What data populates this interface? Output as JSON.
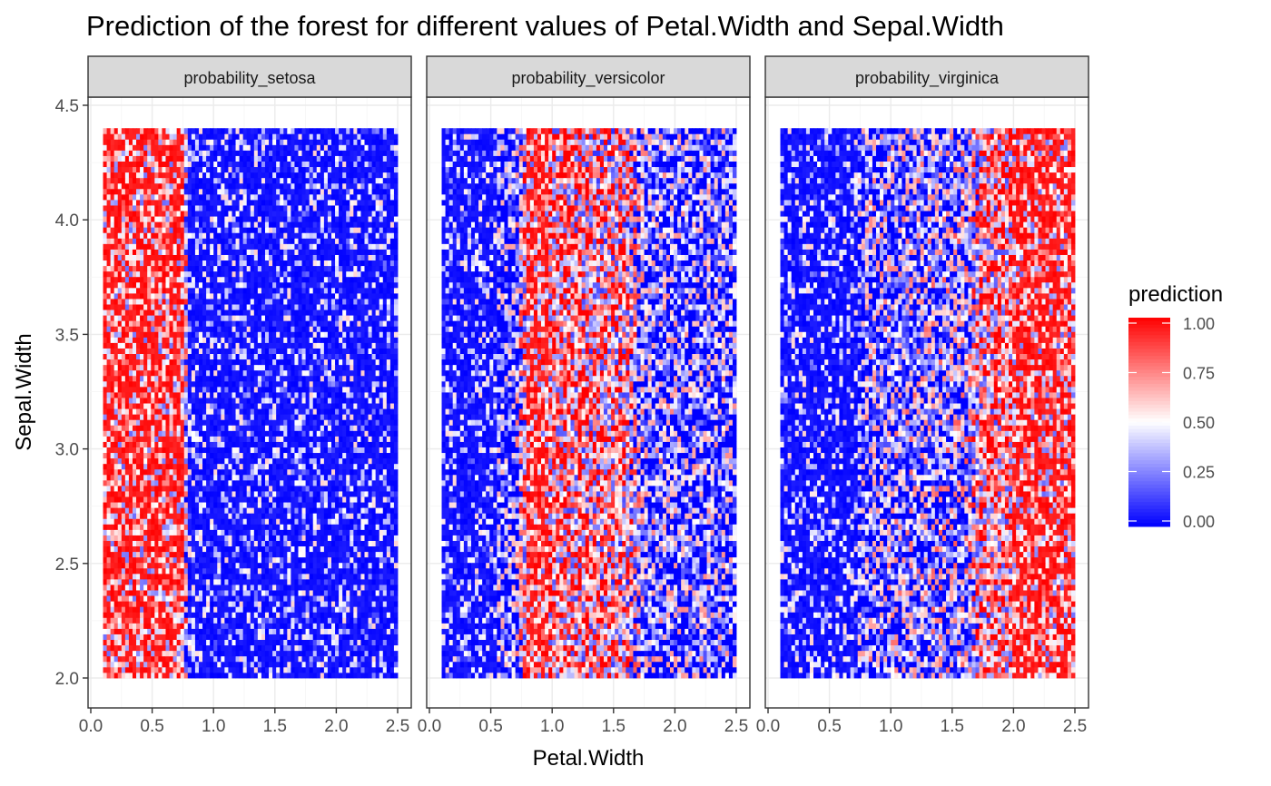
{
  "chart_data": {
    "type": "heatmap",
    "title": "Prediction of the forest for different values of Petal.Width and Sepal.Width",
    "xlabel": "Petal.Width",
    "ylabel": "Sepal.Width",
    "xlim": [
      0.0,
      2.5
    ],
    "ylim": [
      2.0,
      4.5
    ],
    "x_ticks": [
      "0.0",
      "0.5",
      "1.0",
      "1.5",
      "2.0",
      "2.5"
    ],
    "y_ticks": [
      "2.0",
      "2.5",
      "3.0",
      "3.5",
      "4.0",
      "4.5"
    ],
    "grid": true,
    "x_range": [
      0.1,
      2.5
    ],
    "y_range": [
      2.0,
      4.4
    ],
    "facets": [
      {
        "name": "probability_setosa",
        "profile": [
          {
            "x": 0.1,
            "mean": 0.78
          },
          {
            "x": 0.75,
            "mean": 0.74
          },
          {
            "x": 0.8,
            "mean": 0.06
          },
          {
            "x": 2.5,
            "mean": 0.04
          }
        ]
      },
      {
        "name": "probability_versicolor",
        "profile": [
          {
            "x": 0.1,
            "mean": 0.12
          },
          {
            "x": 0.7,
            "mean": 0.16
          },
          {
            "x": 0.8,
            "mean": 0.72
          },
          {
            "x": 1.6,
            "mean": 0.62
          },
          {
            "x": 1.75,
            "mean": 0.22
          },
          {
            "x": 2.5,
            "mean": 0.18
          }
        ]
      },
      {
        "name": "probability_virginica",
        "profile": [
          {
            "x": 0.1,
            "mean": 0.05
          },
          {
            "x": 0.7,
            "mean": 0.1
          },
          {
            "x": 0.8,
            "mean": 0.22
          },
          {
            "x": 1.6,
            "mean": 0.3
          },
          {
            "x": 1.75,
            "mean": 0.65
          },
          {
            "x": 2.5,
            "mean": 0.8
          }
        ]
      }
    ],
    "legend": {
      "title": "prediction",
      "position": "right",
      "ticks": [
        "1.00",
        "0.75",
        "0.50",
        "0.25",
        "0.00"
      ],
      "low_color": "#0000FF",
      "mid_color": "#FFFFFF",
      "high_color": "#FF0000",
      "midpoint": 0.5
    }
  },
  "colors": {
    "strip_fill": "#d9d9d9",
    "grid_major": "#ebebeb",
    "grid_minor": "#f5f5f5",
    "panel_border": "#333333"
  }
}
